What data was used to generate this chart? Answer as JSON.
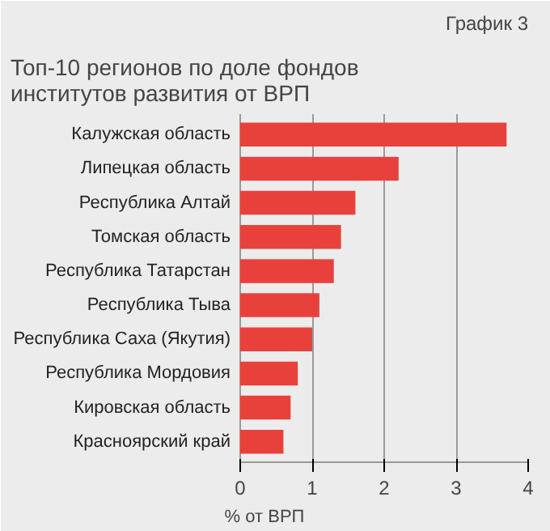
{
  "chart_data": {
    "type": "bar",
    "orientation": "horizontal",
    "title": "Топ-10 регионов по доле фондов институтов развития от ВРП",
    "annotations": [
      "График 3"
    ],
    "xlabel": "% от ВРП",
    "categories": [
      "Калужская область",
      "Липецкая область",
      "Республика Алтай",
      "Томская область",
      "Республика Татарстан",
      "Республика Тыва",
      "Республика Саха (Якутия)",
      "Республика Мордовия",
      "Кировская область",
      "Красноярский край"
    ],
    "values": [
      3.7,
      2.2,
      1.6,
      1.4,
      1.3,
      1.1,
      1.0,
      0.8,
      0.7,
      0.6
    ],
    "color": "#e8413c",
    "xlim": [
      0,
      4
    ],
    "xticks": [
      0,
      1,
      2,
      3,
      4
    ],
    "grid": "x"
  }
}
